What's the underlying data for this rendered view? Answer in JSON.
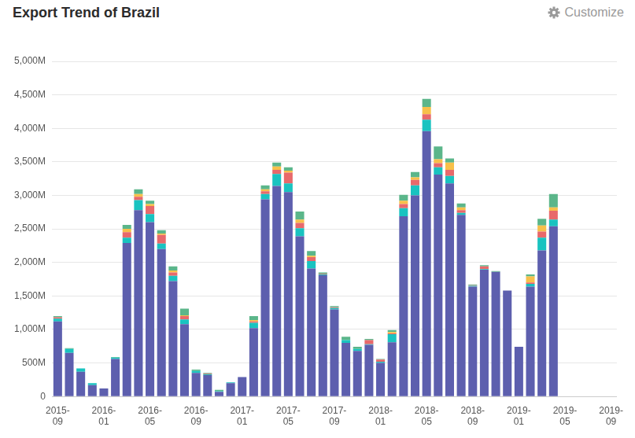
{
  "chart_data": {
    "type": "bar",
    "title": "Export Trend of Brazil",
    "annotations": [
      {
        "text": "Customize"
      }
    ],
    "stacked": true,
    "grid": true,
    "categories": [
      "2015-09",
      null,
      null,
      null,
      "2016-01",
      null,
      null,
      null,
      "2016-05",
      null,
      null,
      null,
      "2016-09",
      null,
      null,
      null,
      "2017-01",
      null,
      null,
      null,
      "2017-05",
      null,
      null,
      null,
      "2017-09",
      null,
      null,
      null,
      "2018-01",
      null,
      null,
      null,
      "2018-05",
      null,
      null,
      null,
      "2018-09",
      null,
      null,
      null,
      "2019-01",
      null,
      null,
      null,
      "2019-05",
      null,
      null,
      null,
      "2019-09"
    ],
    "ylim": [
      0,
      5000
    ],
    "yticks": [
      0,
      {
        "value": 500,
        "label": "500M"
      },
      {
        "value": 1000,
        "label": "1,000M"
      },
      {
        "value": 1500,
        "label": "1,500M"
      },
      {
        "value": 2000,
        "label": "2,000M"
      },
      {
        "value": 2500,
        "label": "2,500M"
      },
      {
        "value": 3000,
        "label": "3,000M"
      },
      {
        "value": 3500,
        "label": "3,500M"
      },
      {
        "value": 4000,
        "label": "4,000M"
      },
      {
        "value": 4500,
        "label": "4,500M"
      },
      {
        "value": 5000,
        "label": "5,000M"
      }
    ],
    "series": [
      {
        "color": "#5d5fae",
        "values": [
          1120,
          650,
          370,
          170,
          120,
          560,
          2290,
          2780,
          2600,
          2200,
          1720,
          1080,
          350,
          320,
          70,
          200,
          290,
          1020,
          2940,
          3140,
          3050,
          2390,
          1910,
          1810,
          1300,
          800,
          680,
          770,
          500,
          810,
          2690,
          3000,
          3960,
          3310,
          3180,
          2710,
          1640,
          1890,
          1860,
          1580,
          740,
          1640,
          2180,
          2540,
          null,
          null,
          null,
          null,
          null
        ]
      },
      {
        "color": "#19c3c0",
        "values": [
          40,
          60,
          50,
          30,
          0,
          20,
          80,
          150,
          120,
          80,
          80,
          70,
          30,
          10,
          10,
          10,
          0,
          80,
          80,
          180,
          130,
          120,
          110,
          10,
          20,
          40,
          30,
          10,
          20,
          120,
          120,
          150,
          170,
          110,
          110,
          30,
          10,
          10,
          0,
          0,
          0,
          40,
          190,
          100,
          null,
          null,
          null,
          null,
          null
        ]
      },
      {
        "color": "#e8696b",
        "values": [
          20,
          0,
          0,
          0,
          0,
          0,
          80,
          50,
          120,
          130,
          50,
          50,
          0,
          10,
          0,
          0,
          0,
          20,
          40,
          60,
          160,
          80,
          60,
          10,
          10,
          0,
          0,
          60,
          30,
          10,
          60,
          80,
          80,
          60,
          90,
          40,
          10,
          40,
          0,
          0,
          0,
          20,
          90,
          130,
          null,
          null,
          null,
          null,
          null
        ]
      },
      {
        "color": "#f7c04a",
        "values": [
          0,
          0,
          0,
          0,
          0,
          0,
          50,
          40,
          30,
          20,
          30,
          10,
          0,
          0,
          0,
          0,
          0,
          20,
          30,
          50,
          30,
          50,
          20,
          0,
          0,
          0,
          0,
          0,
          0,
          20,
          50,
          40,
          110,
          60,
          110,
          40,
          0,
          0,
          0,
          0,
          0,
          90,
          90,
          50,
          null,
          null,
          null,
          null,
          null
        ]
      },
      {
        "color": "#5bb68a",
        "values": [
          20,
          10,
          0,
          0,
          0,
          10,
          60,
          70,
          50,
          50,
          60,
          100,
          20,
          10,
          20,
          0,
          0,
          60,
          60,
          60,
          50,
          120,
          70,
          20,
          20,
          50,
          30,
          20,
          10,
          30,
          90,
          80,
          120,
          190,
          60,
          60,
          10,
          20,
          10,
          0,
          0,
          30,
          100,
          200,
          null,
          null,
          null,
          null,
          null
        ]
      }
    ]
  }
}
